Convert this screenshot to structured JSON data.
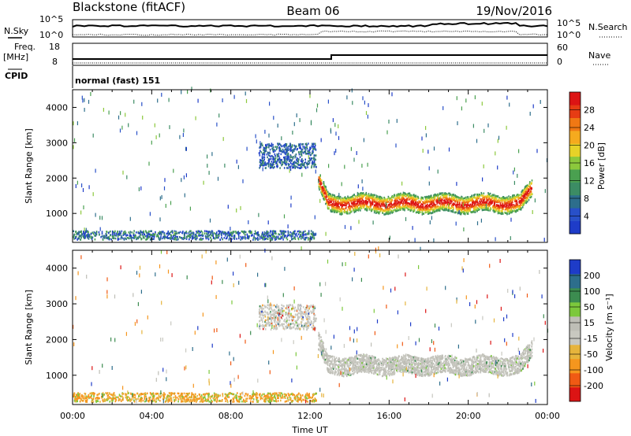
{
  "header": {
    "station": "Blackstone (fitACF)",
    "beam": "Beam 06",
    "date": "19/Nov/2016"
  },
  "noise_panel": {
    "left_label": "N.Sky",
    "right_label": "N.Search",
    "top_tick": "10^5",
    "bottom_tick": "10^0"
  },
  "freq_panel": {
    "left_label_1": "Freq.",
    "left_label_2": "[MHz]",
    "right_label": "Nave",
    "left_ticks": [
      "18",
      "8"
    ],
    "right_ticks": [
      "60",
      "0"
    ]
  },
  "cpid": {
    "label": "CPID",
    "value": "normal (fast) 151"
  },
  "colors": {
    "power": [
      "#1e3cc8",
      "#2850c8",
      "#2d6e8c",
      "#3c8c64",
      "#4aa050",
      "#8cc83c",
      "#e6d228",
      "#f5aa1e",
      "#f07814",
      "#e63c14",
      "#dc1414"
    ],
    "velocity": [
      "#dc1414",
      "#f05a14",
      "#f5961e",
      "#e6b43c",
      "#c8c8c0",
      "#bebeb6",
      "#7cc83c",
      "#3c8c50",
      "#2d6e8c",
      "#1e3cc8"
    ]
  },
  "chart_data": [
    {
      "type": "heatmap",
      "name": "power",
      "ylabel": "Slant Range [km]",
      "xlabel": "",
      "xlim_hours": [
        0,
        24
      ],
      "ylim": [
        180,
        4500
      ],
      "yticks": [
        "1000",
        "2000",
        "3000",
        "4000"
      ],
      "xticks": [
        "00:00",
        "04:00",
        "08:00",
        "12:00",
        "16:00",
        "20:00",
        "00:00"
      ],
      "colorbar_label": "Power [dB]",
      "colorbar_ticks": [
        "4",
        "8",
        "12",
        "16",
        "20",
        "24",
        "28"
      ],
      "features": [
        {
          "kind": "evening_band",
          "t_start": 12.4,
          "t_end": 23.2,
          "center_km": 1250,
          "width_km": 500,
          "peak_db": 26
        },
        {
          "kind": "morning_patch",
          "t_start": 9.4,
          "t_end": 12.3,
          "center_km": 2600,
          "width_km": 700,
          "peak_db": 8
        },
        {
          "kind": "near_range",
          "t_start": 0.0,
          "t_end": 12.3,
          "center_km": 350,
          "width_km": 250,
          "peak_db": 10
        }
      ]
    },
    {
      "type": "heatmap",
      "name": "velocity",
      "ylabel": "Slant Range [km]",
      "xlabel": "Time UT",
      "xlim_hours": [
        0,
        24
      ],
      "ylim": [
        180,
        4500
      ],
      "yticks": [
        "1000",
        "2000",
        "3000",
        "4000"
      ],
      "xticks": [
        "00:00",
        "04:00",
        "08:00",
        "12:00",
        "16:00",
        "20:00",
        "00:00"
      ],
      "colorbar_label": "Velocity [m s⁻¹]",
      "colorbar_ticks": [
        "200",
        "100",
        "50",
        "15",
        "-15",
        "-50",
        "-100",
        "-200"
      ],
      "features": [
        {
          "kind": "evening_band",
          "t_start": 12.4,
          "t_end": 23.2,
          "center_km": 1250,
          "width_km": 500,
          "velocity": 0
        },
        {
          "kind": "morning_patch",
          "t_start": 9.4,
          "t_end": 12.3,
          "center_km": 2600,
          "width_km": 700,
          "velocity": 0
        },
        {
          "kind": "near_range",
          "t_start": 0.0,
          "t_end": 12.3,
          "center_km": 350,
          "width_km": 250,
          "velocity": -60
        }
      ]
    }
  ]
}
